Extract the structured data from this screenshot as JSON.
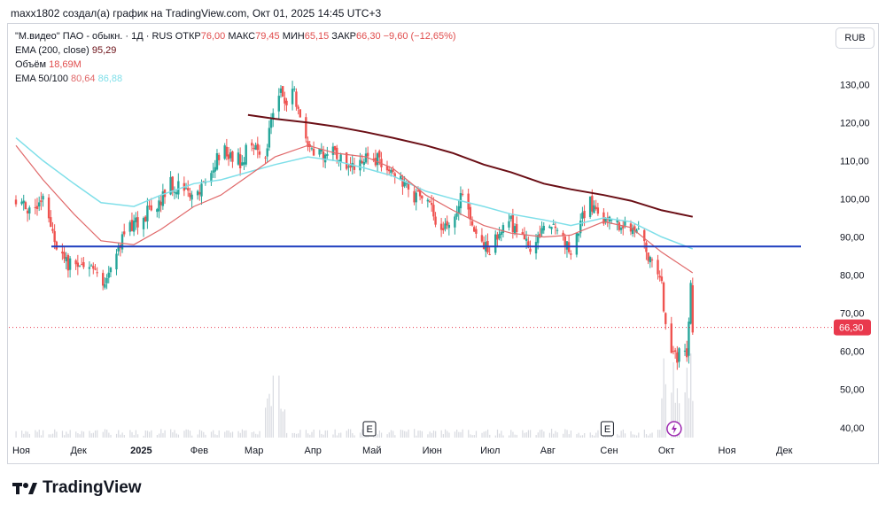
{
  "header": {
    "text": "maxx1802 создал(а) график на TradingView.com, Окт 01, 2025 14:45 UTC+3"
  },
  "legend": {
    "symbol": "\"М.видео\" ПАО - обыкн. · 1Д · RUS",
    "open_label": "ОТКР",
    "open": "76,00",
    "high_label": "МАКС",
    "high": "79,45",
    "low_label": "МИН",
    "low": "65,15",
    "close_label": "ЗАКР",
    "close": "66,30",
    "change": "−9,60 (−12,65%)",
    "ema200_label": "EMA (200, close)",
    "ema200_value": "95,29",
    "volume_label": "Объём",
    "volume_value": "18,69M",
    "ema50_100_label": "EMA 50/100",
    "ema50_value": "80,64",
    "ema100_value": "86,88"
  },
  "currency": "RUB",
  "brand": "TradingView",
  "colors": {
    "up": "#26a69a",
    "down": "#ef5350",
    "ema200": "#6b0f16",
    "ema50": "#e0696a",
    "ema100": "#7fdfe9",
    "level": "#1e3fbf",
    "price_tag": "#e9394d"
  },
  "chart_data": {
    "type": "candlestick",
    "x_tick_labels": [
      "Ноя",
      "Дек",
      "2025",
      "Фев",
      "Мар",
      "Апр",
      "Май",
      "Июн",
      "Июл",
      "Авг",
      "Сен",
      "Окт",
      "Ноя",
      "Дек"
    ],
    "y_tick_labels": [
      "130,00",
      "120,00",
      "110,00",
      "100,00",
      "90,00",
      "80,00",
      "70,00",
      "60,00",
      "50,00",
      "40,00"
    ],
    "ylim": [
      36,
      141
    ],
    "horizontal_level": 87.5,
    "last_price_label": "66,30",
    "last_price": 66.3,
    "event_markers": [
      {
        "date": "2025-05-01",
        "label": "E"
      },
      {
        "date": "2025-09-01",
        "label": "E"
      }
    ],
    "lightning_marker_date": "2025-10-01",
    "price_path": [
      [
        "2024-11-01",
        100
      ],
      [
        "2024-11-05",
        98
      ],
      [
        "2024-11-10",
        96
      ],
      [
        "2024-11-15",
        101
      ],
      [
        "2024-11-20",
        92
      ],
      [
        "2024-11-23",
        86
      ],
      [
        "2024-11-28",
        83
      ],
      [
        "2024-12-04",
        81
      ],
      [
        "2024-12-10",
        82
      ],
      [
        "2024-12-15",
        78
      ],
      [
        "2024-12-20",
        80
      ],
      [
        "2024-12-25",
        88
      ],
      [
        "2024-12-29",
        92
      ],
      [
        "2025-01-05",
        94
      ],
      [
        "2025-01-10",
        98
      ],
      [
        "2025-01-15",
        100
      ],
      [
        "2025-01-20",
        104
      ],
      [
        "2025-01-25",
        103
      ],
      [
        "2025-02-01",
        100
      ],
      [
        "2025-02-05",
        104
      ],
      [
        "2025-02-10",
        106
      ],
      [
        "2025-02-15",
        113
      ],
      [
        "2025-02-20",
        112
      ],
      [
        "2025-02-25",
        110
      ],
      [
        "2025-03-01",
        113
      ],
      [
        "2025-03-05",
        114
      ],
      [
        "2025-03-10",
        111
      ],
      [
        "2025-03-12",
        118
      ],
      [
        "2025-03-15",
        125
      ],
      [
        "2025-03-18",
        130
      ],
      [
        "2025-03-21",
        124
      ],
      [
        "2025-03-25",
        128
      ],
      [
        "2025-03-28",
        121
      ],
      [
        "2025-04-01",
        114
      ],
      [
        "2025-04-05",
        113
      ],
      [
        "2025-04-10",
        111
      ],
      [
        "2025-04-15",
        113
      ],
      [
        "2025-04-20",
        110
      ],
      [
        "2025-04-25",
        108
      ],
      [
        "2025-04-30",
        110
      ],
      [
        "2025-05-05",
        111
      ],
      [
        "2025-05-10",
        110
      ],
      [
        "2025-05-15",
        108
      ],
      [
        "2025-05-20",
        104
      ],
      [
        "2025-05-25",
        101
      ],
      [
        "2025-06-01",
        100
      ],
      [
        "2025-06-05",
        96
      ],
      [
        "2025-06-10",
        91
      ],
      [
        "2025-06-15",
        96
      ],
      [
        "2025-06-20",
        101
      ],
      [
        "2025-06-25",
        92
      ],
      [
        "2025-06-30",
        88
      ],
      [
        "2025-07-05",
        87
      ],
      [
        "2025-07-10",
        93
      ],
      [
        "2025-07-15",
        94
      ],
      [
        "2025-07-20",
        89
      ],
      [
        "2025-07-25",
        88
      ],
      [
        "2025-07-28",
        89
      ],
      [
        "2025-08-01",
        92
      ],
      [
        "2025-08-05",
        94
      ],
      [
        "2025-08-08",
        92
      ],
      [
        "2025-08-12",
        88
      ],
      [
        "2025-08-15",
        87
      ],
      [
        "2025-08-18",
        90
      ],
      [
        "2025-08-21",
        95
      ],
      [
        "2025-08-24",
        100
      ],
      [
        "2025-08-27",
        98
      ],
      [
        "2025-09-01",
        95
      ],
      [
        "2025-09-05",
        93
      ],
      [
        "2025-09-10",
        94
      ],
      [
        "2025-09-15",
        93
      ],
      [
        "2025-09-20",
        90
      ],
      [
        "2025-09-23",
        87
      ],
      [
        "2025-09-26",
        82
      ],
      [
        "2025-09-29",
        80
      ],
      [
        "2025-10-01",
        78
      ],
      [
        "2025-10-04",
        60
      ],
      [
        "2025-10-08",
        59
      ],
      [
        "2025-10-11",
        59
      ],
      [
        "2025-10-14",
        58
      ],
      [
        "2025-10-16",
        76
      ],
      [
        "2025-10-17",
        66.3
      ]
    ],
    "ema200_path": [
      [
        "2025-03-01",
        122
      ],
      [
        "2025-03-15",
        121
      ],
      [
        "2025-04-01",
        120
      ],
      [
        "2025-04-15",
        119
      ],
      [
        "2025-05-01",
        117.5
      ],
      [
        "2025-05-15",
        116
      ],
      [
        "2025-06-01",
        114
      ],
      [
        "2025-06-15",
        112
      ],
      [
        "2025-07-01",
        109
      ],
      [
        "2025-07-15",
        107
      ],
      [
        "2025-08-01",
        104
      ],
      [
        "2025-08-15",
        102.5
      ],
      [
        "2025-09-01",
        101
      ],
      [
        "2025-09-15",
        99.5
      ],
      [
        "2025-10-01",
        97
      ],
      [
        "2025-10-17",
        95.3
      ]
    ],
    "ema100_path": [
      [
        "2024-11-01",
        116
      ],
      [
        "2024-11-15",
        110
      ],
      [
        "2024-12-01",
        104
      ],
      [
        "2024-12-15",
        99
      ],
      [
        "2025-01-01",
        98
      ],
      [
        "2025-01-15",
        101
      ],
      [
        "2025-02-01",
        104
      ],
      [
        "2025-02-15",
        105
      ],
      [
        "2025-03-01",
        107
      ],
      [
        "2025-03-15",
        109
      ],
      [
        "2025-04-01",
        111
      ],
      [
        "2025-04-15",
        110
      ],
      [
        "2025-05-01",
        108
      ],
      [
        "2025-05-15",
        106
      ],
      [
        "2025-06-01",
        102
      ],
      [
        "2025-06-15",
        100
      ],
      [
        "2025-07-01",
        98
      ],
      [
        "2025-07-15",
        96
      ],
      [
        "2025-08-01",
        94.5
      ],
      [
        "2025-08-15",
        93
      ],
      [
        "2025-09-01",
        95
      ],
      [
        "2025-09-15",
        94
      ],
      [
        "2025-10-01",
        90
      ],
      [
        "2025-10-17",
        86.9
      ]
    ],
    "ema50_path": [
      [
        "2024-11-01",
        114
      ],
      [
        "2024-11-15",
        105
      ],
      [
        "2024-12-01",
        96
      ],
      [
        "2024-12-15",
        89
      ],
      [
        "2025-01-01",
        88
      ],
      [
        "2025-01-15",
        92
      ],
      [
        "2025-02-01",
        98
      ],
      [
        "2025-02-15",
        101
      ],
      [
        "2025-03-01",
        106
      ],
      [
        "2025-03-15",
        111
      ],
      [
        "2025-04-01",
        114
      ],
      [
        "2025-04-15",
        112
      ],
      [
        "2025-05-01",
        111
      ],
      [
        "2025-05-15",
        108
      ],
      [
        "2025-06-01",
        101
      ],
      [
        "2025-06-15",
        97
      ],
      [
        "2025-07-01",
        93
      ],
      [
        "2025-07-15",
        91
      ],
      [
        "2025-08-01",
        90
      ],
      [
        "2025-08-15",
        90.5
      ],
      [
        "2025-09-01",
        94
      ],
      [
        "2025-09-15",
        92.5
      ],
      [
        "2025-10-01",
        86
      ],
      [
        "2025-10-17",
        80.6
      ]
    ]
  }
}
